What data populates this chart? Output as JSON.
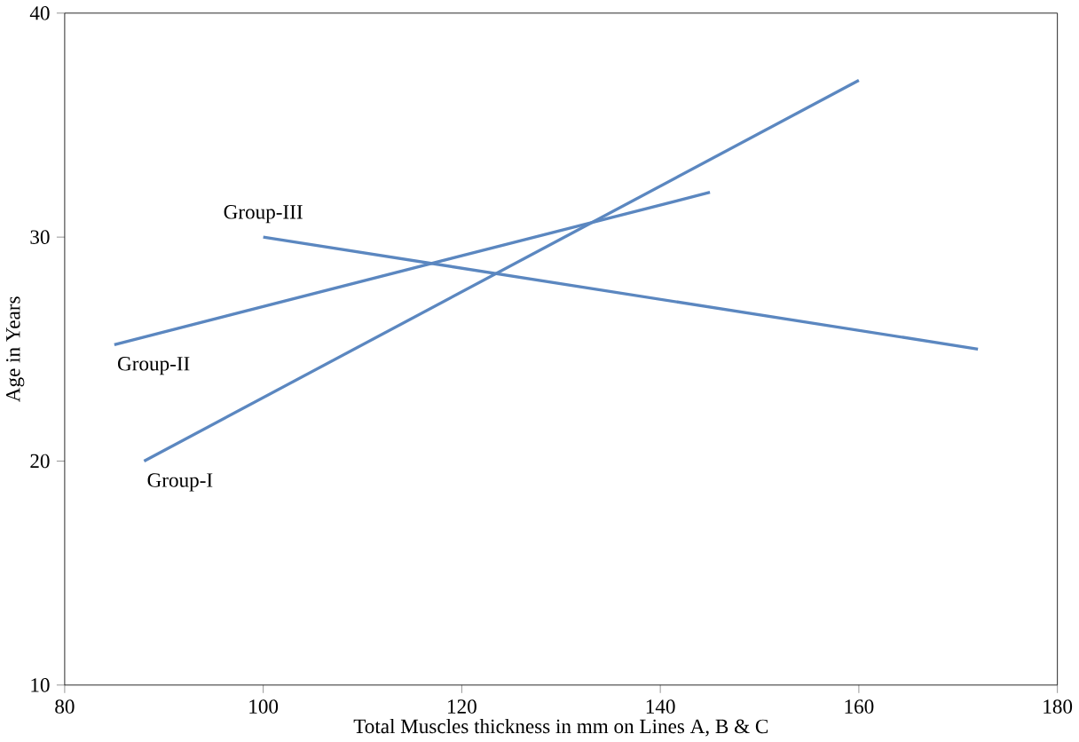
{
  "chart_data": {
    "type": "line",
    "xlabel": "Total Muscles thickness in mm on Lines A, B & C",
    "ylabel": "Age in Years",
    "xlim": [
      80,
      180
    ],
    "xticks": [
      80,
      100,
      120,
      140,
      160,
      180
    ],
    "ylim": [
      10,
      40
    ],
    "yticks": [
      10,
      20,
      30,
      40
    ],
    "grid": false,
    "marker": "none",
    "line_style": "solid",
    "series": [
      {
        "name": "Group-I",
        "color": "#5b87c0",
        "x": [
          88,
          160
        ],
        "values": [
          20,
          37
        ]
      },
      {
        "name": "Group-II",
        "color": "#5b87c0",
        "x": [
          85,
          145
        ],
        "values": [
          25.2,
          32
        ]
      },
      {
        "name": "Group-III",
        "color": "#5b87c0",
        "x": [
          100,
          172
        ],
        "values": [
          30,
          25
        ]
      }
    ]
  }
}
